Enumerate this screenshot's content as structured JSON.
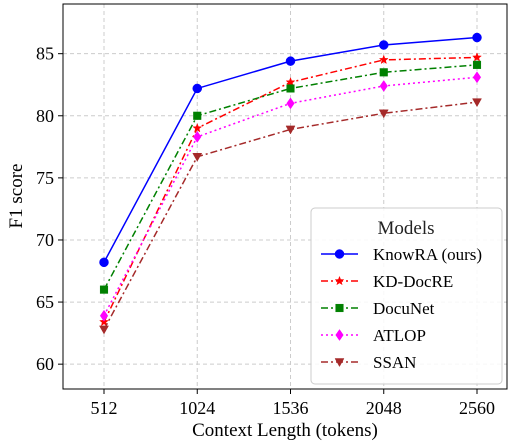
{
  "chart_data": {
    "type": "line",
    "xlabel": "Context Length (tokens)",
    "ylabel": "F1 score",
    "categories": [
      "512",
      "1024",
      "1536",
      "2048",
      "2560"
    ],
    "ylim": [
      58,
      89
    ],
    "yticks": [
      60,
      65,
      70,
      75,
      80,
      85
    ],
    "grid": true,
    "legend": {
      "title": "Models",
      "position": "lower-right"
    },
    "series": [
      {
        "name": "KnowRA (ours)",
        "values": [
          68.2,
          82.2,
          84.4,
          85.7,
          86.3
        ],
        "color": "#0000ff",
        "marker": "circle",
        "dash": "solid"
      },
      {
        "name": "KD-DocRE",
        "values": [
          63.4,
          79.0,
          82.7,
          84.5,
          84.7
        ],
        "color": "#ff0000",
        "marker": "star",
        "dash": "dashdot"
      },
      {
        "name": "DocuNet",
        "values": [
          66.0,
          80.0,
          82.2,
          83.5,
          84.1
        ],
        "color": "#008000",
        "marker": "square",
        "dash": "dashdot"
      },
      {
        "name": "ATLOP",
        "values": [
          63.9,
          78.3,
          81.0,
          82.4,
          83.1
        ],
        "color": "#ff00ff",
        "marker": "diamond",
        "dash": "dotted"
      },
      {
        "name": "SSAN",
        "values": [
          62.8,
          76.7,
          78.9,
          80.2,
          81.1
        ],
        "color": "#a52a2a",
        "marker": "triangle-down",
        "dash": "dashdot"
      }
    ]
  }
}
